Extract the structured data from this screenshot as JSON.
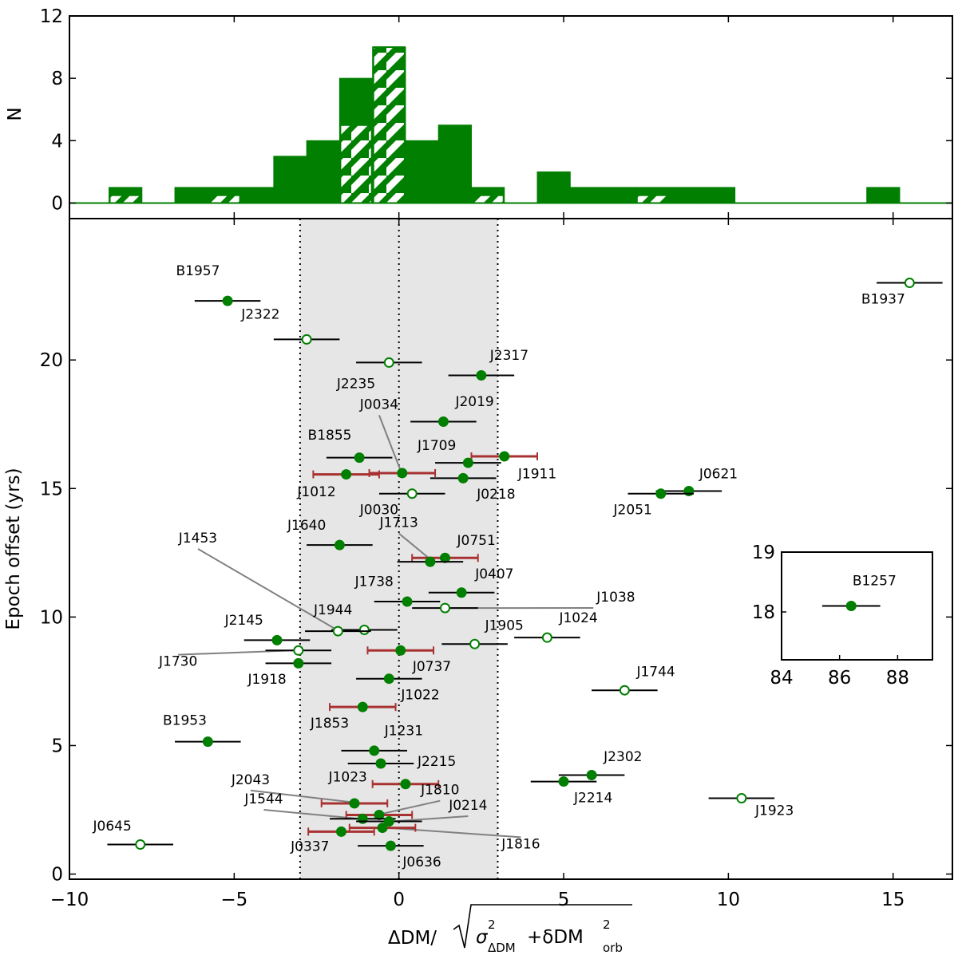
{
  "colors": {
    "green": "#007f00",
    "errorbar_black": "#000000",
    "errorbar_red": "#a83232",
    "band_fill": "#e6e6e6",
    "leader_line": "#808080"
  },
  "chart_data": [
    {
      "type": "histogram",
      "panel": "top",
      "ylabel": "N",
      "ylim": [
        -1,
        12
      ],
      "yticks": [
        0,
        4,
        8,
        12
      ],
      "xlim": [
        -10,
        16.8
      ],
      "bin_width": 1.0,
      "bins": [
        {
          "x0": -8.8,
          "total": 1,
          "hatched": 0.5
        },
        {
          "x0": -6.8,
          "total": 1,
          "hatched": 0
        },
        {
          "x0": -5.8,
          "total": 1,
          "hatched": 0.5
        },
        {
          "x0": -4.8,
          "total": 1,
          "hatched": 0
        },
        {
          "x0": -3.8,
          "total": 3,
          "hatched": 0
        },
        {
          "x0": -2.8,
          "total": 4,
          "hatched": 0
        },
        {
          "x0": -1.8,
          "total": 8,
          "hatched": 5
        },
        {
          "x0": -0.8,
          "total": 10,
          "hatched": 10
        },
        {
          "x0": 0.2,
          "total": 4,
          "hatched": 0
        },
        {
          "x0": 1.2,
          "total": 5,
          "hatched": 0
        },
        {
          "x0": 2.2,
          "total": 1,
          "hatched": 0.5
        },
        {
          "x0": 4.2,
          "total": 2,
          "hatched": 0
        },
        {
          "x0": 5.2,
          "total": 1,
          "hatched": 0
        },
        {
          "x0": 6.2,
          "total": 1,
          "hatched": 0
        },
        {
          "x0": 7.2,
          "total": 1,
          "hatched": 0.5
        },
        {
          "x0": 8.2,
          "total": 1,
          "hatched": 0
        },
        {
          "x0": 9.2,
          "total": 1,
          "hatched": 0
        },
        {
          "x0": 14.2,
          "total": 1,
          "hatched": 0
        }
      ]
    },
    {
      "type": "scatter",
      "panel": "main",
      "ylabel": "Epoch offset (yrs)",
      "xlabel": "ΔDM/√(σ²ΔDM + δDM²orb)",
      "xlim": [
        -10,
        16.8
      ],
      "ylim": [
        -0.2,
        25.5
      ],
      "xticks": [
        -10,
        -5,
        0,
        5,
        10,
        15
      ],
      "yticks": [
        0,
        5,
        10,
        15,
        20
      ],
      "band": [
        -3,
        3
      ],
      "vlines": [
        -3,
        0,
        3
      ],
      "points": [
        {
          "name": "B1957",
          "x": -5.2,
          "y": 22.3,
          "filled": true,
          "err": 1.0,
          "red": false
        },
        {
          "name": "J2322",
          "x": -2.8,
          "y": 20.8,
          "filled": false,
          "err": 1.0,
          "red": false
        },
        {
          "name": "J2235",
          "x": -0.3,
          "y": 19.9,
          "filled": false,
          "err": 1.0,
          "red": false
        },
        {
          "name": "J2317",
          "x": 2.5,
          "y": 19.4,
          "filled": true,
          "err": 1.0,
          "red": false
        },
        {
          "name": "J2019",
          "x": 1.35,
          "y": 17.6,
          "filled": true,
          "err": 1.0,
          "red": false
        },
        {
          "name": "B1855",
          "x": -1.2,
          "y": 16.2,
          "filled": true,
          "err": 1.0,
          "red": false
        },
        {
          "name": "J1911",
          "x": 3.2,
          "y": 16.25,
          "filled": true,
          "err": 1.0,
          "red": true
        },
        {
          "name": "J1709",
          "x": 2.1,
          "y": 16.0,
          "filled": true,
          "err": 1.0,
          "red": false
        },
        {
          "name": "J0034",
          "x": 0.1,
          "y": 15.6,
          "filled": true,
          "err": 1.0,
          "red": true
        },
        {
          "name": "J1012",
          "x": -1.6,
          "y": 15.55,
          "filled": true,
          "err": 1.0,
          "red": true
        },
        {
          "name": "J0218",
          "x": 1.95,
          "y": 15.4,
          "filled": true,
          "err": 1.0,
          "red": false
        },
        {
          "name": "J0030",
          "x": 0.4,
          "y": 14.8,
          "filled": false,
          "err": 1.0,
          "red": false
        },
        {
          "name": "J0621",
          "x": 8.8,
          "y": 14.9,
          "filled": true,
          "err": 1.0,
          "red": false
        },
        {
          "name": "J2051",
          "x": 7.95,
          "y": 14.8,
          "filled": true,
          "err": 1.0,
          "red": false
        },
        {
          "name": "J1640",
          "x": -1.8,
          "y": 12.8,
          "filled": true,
          "err": 1.0,
          "red": false
        },
        {
          "name": "J0751",
          "x": 1.4,
          "y": 12.3,
          "filled": true,
          "err": 1.0,
          "red": true
        },
        {
          "name": "J1713",
          "x": 0.95,
          "y": 12.15,
          "filled": true,
          "err": 1.0,
          "red": false
        },
        {
          "name": "J0407",
          "x": 1.9,
          "y": 10.95,
          "filled": true,
          "err": 1.0,
          "red": false
        },
        {
          "name": "J1738",
          "x": 0.25,
          "y": 10.6,
          "filled": true,
          "err": 1.0,
          "red": false
        },
        {
          "name": "J1038",
          "x": 1.4,
          "y": 10.35,
          "filled": false,
          "err": 1.0,
          "red": false
        },
        {
          "name": "J1944",
          "x": -1.05,
          "y": 9.5,
          "filled": false,
          "err": 1.0,
          "red": false
        },
        {
          "name": "J1453",
          "x": -1.85,
          "y": 9.45,
          "filled": false,
          "err": 1.0,
          "red": false
        },
        {
          "name": "J2145",
          "x": -3.7,
          "y": 9.1,
          "filled": true,
          "err": 1.0,
          "red": false
        },
        {
          "name": "J1905",
          "x": 2.3,
          "y": 8.95,
          "filled": false,
          "err": 1.0,
          "red": false
        },
        {
          "name": "J1024",
          "x": 4.5,
          "y": 9.2,
          "filled": false,
          "err": 1.0,
          "red": false
        },
        {
          "name": "J1730",
          "x": -3.05,
          "y": 8.7,
          "filled": false,
          "err": 1.0,
          "red": false
        },
        {
          "name": "J0737",
          "x": 0.05,
          "y": 8.7,
          "filled": true,
          "err": 1.0,
          "red": true
        },
        {
          "name": "J1918",
          "x": -3.05,
          "y": 8.2,
          "filled": true,
          "err": 1.0,
          "red": false
        },
        {
          "name": "J1022",
          "x": -0.3,
          "y": 7.6,
          "filled": true,
          "err": 1.0,
          "red": false
        },
        {
          "name": "J1744",
          "x": 6.85,
          "y": 7.15,
          "filled": false,
          "err": 1.0,
          "red": false
        },
        {
          "name": "J1853",
          "x": -1.1,
          "y": 6.5,
          "filled": true,
          "err": 1.0,
          "red": true
        },
        {
          "name": "B1953",
          "x": -5.8,
          "y": 5.15,
          "filled": true,
          "err": 1.0,
          "red": false
        },
        {
          "name": "J1231",
          "x": -0.75,
          "y": 4.8,
          "filled": true,
          "err": 1.0,
          "red": false
        },
        {
          "name": "J2215",
          "x": -0.55,
          "y": 4.3,
          "filled": true,
          "err": 1.0,
          "red": false
        },
        {
          "name": "J2302",
          "x": 5.85,
          "y": 3.85,
          "filled": true,
          "err": 1.0,
          "red": false
        },
        {
          "name": "J2214",
          "x": 5.0,
          "y": 3.6,
          "filled": true,
          "err": 1.0,
          "red": false
        },
        {
          "name": "J1023",
          "x": 0.2,
          "y": 3.5,
          "filled": true,
          "err": 1.0,
          "red": true
        },
        {
          "name": "J1923",
          "x": 10.4,
          "y": 2.95,
          "filled": false,
          "err": 1.0,
          "red": false
        },
        {
          "name": "J2043",
          "x": -1.35,
          "y": 2.75,
          "filled": true,
          "err": 1.0,
          "red": true
        },
        {
          "name": "J1810",
          "x": -0.6,
          "y": 2.3,
          "filled": true,
          "err": 1.0,
          "red": true
        },
        {
          "name": "J1544",
          "x": -1.1,
          "y": 2.15,
          "filled": true,
          "err": 1.0,
          "red": false
        },
        {
          "name": "J0214",
          "x": -0.3,
          "y": 2.05,
          "filled": true,
          "err": 1.0,
          "red": false
        },
        {
          "name": "J1816",
          "x": -0.5,
          "y": 1.8,
          "filled": true,
          "err": 1.0,
          "red": true
        },
        {
          "name": "J0337",
          "x": -1.75,
          "y": 1.65,
          "filled": true,
          "err": 1.0,
          "red": true
        },
        {
          "name": "J0636",
          "x": -0.25,
          "y": 1.1,
          "filled": true,
          "err": 1.0,
          "red": false
        },
        {
          "name": "J0645",
          "x": -7.85,
          "y": 1.15,
          "filled": false,
          "err": 1.0,
          "red": false
        },
        {
          "name": "B1937",
          "x": 15.5,
          "y": 23.0,
          "filled": false,
          "err": 1.0,
          "red": false
        }
      ],
      "annotations": [
        {
          "name": "J0034",
          "lx": -0.6,
          "ly": 18.1,
          "anchor": "middle",
          "leader": true,
          "tx": 0.05,
          "ty": 15.7
        },
        {
          "name": "J1713",
          "lx": 0.0,
          "ly": 13.5,
          "anchor": "middle",
          "leader": true,
          "tx": 0.9,
          "ty": 12.3
        },
        {
          "name": "J1453",
          "lx": -6.1,
          "ly": 12.9,
          "anchor": "middle",
          "leader": true,
          "tx": -1.95,
          "ty": 9.55
        },
        {
          "name": "J1038",
          "lx": 6.0,
          "ly": 10.6,
          "anchor": "start",
          "leader": true,
          "tx": 1.5,
          "ty": 10.35
        },
        {
          "name": "J1730",
          "lx": -6.7,
          "ly": 8.1,
          "anchor": "middle",
          "leader": true,
          "tx": -3.2,
          "ty": 8.7
        },
        {
          "name": "J2043",
          "lx": -4.5,
          "ly": 3.5,
          "anchor": "middle",
          "leader": true,
          "tx": -1.45,
          "ty": 2.8
        },
        {
          "name": "J1544",
          "lx": -4.1,
          "ly": 2.75,
          "anchor": "middle",
          "leader": true,
          "tx": -1.2,
          "ty": 2.15
        },
        {
          "name": "J1810",
          "lx": 1.25,
          "ly": 3.1,
          "anchor": "middle",
          "leader": true,
          "tx": -0.5,
          "ty": 2.35
        },
        {
          "name": "J0214",
          "lx": 2.1,
          "ly": 2.5,
          "anchor": "middle",
          "leader": true,
          "tx": -0.2,
          "ty": 2.05
        },
        {
          "name": "J1816",
          "lx": 3.7,
          "ly": 1.0,
          "anchor": "middle",
          "leader": true,
          "tx": -0.4,
          "ty": 1.8
        }
      ],
      "labels": [
        {
          "name": "B1957",
          "lx": -6.1,
          "ly": 23.3
        },
        {
          "name": "J2322",
          "lx": -4.2,
          "ly": 21.6
        },
        {
          "name": "J2235",
          "lx": -1.3,
          "ly": 18.9
        },
        {
          "name": "J2317",
          "lx": 3.35,
          "ly": 20.0
        },
        {
          "name": "J2019",
          "lx": 2.3,
          "ly": 18.2
        },
        {
          "name": "B1855",
          "lx": -2.1,
          "ly": 16.9
        },
        {
          "name": "J1709",
          "lx": 1.15,
          "ly": 16.5
        },
        {
          "name": "J1911",
          "lx": 4.2,
          "ly": 15.4
        },
        {
          "name": "J1012",
          "lx": -2.5,
          "ly": 14.7
        },
        {
          "name": "J0218",
          "lx": 2.95,
          "ly": 14.6
        },
        {
          "name": "J0030",
          "lx": -0.6,
          "ly": 14.0
        },
        {
          "name": "J0621",
          "lx": 9.7,
          "ly": 15.4
        },
        {
          "name": "J2051",
          "lx": 7.1,
          "ly": 14.0
        },
        {
          "name": "J1640",
          "lx": -2.8,
          "ly": 13.4
        },
        {
          "name": "J0751",
          "lx": 2.35,
          "ly": 12.8
        },
        {
          "name": "J0407",
          "lx": 2.9,
          "ly": 11.5
        },
        {
          "name": "J1738",
          "lx": -0.75,
          "ly": 11.2
        },
        {
          "name": "J1944",
          "lx": -2.0,
          "ly": 10.1
        },
        {
          "name": "J2145",
          "lx": -4.7,
          "ly": 9.7
        },
        {
          "name": "J1905",
          "lx": 3.2,
          "ly": 9.5
        },
        {
          "name": "J1024",
          "lx": 5.45,
          "ly": 9.8
        },
        {
          "name": "J0737",
          "lx": 1.0,
          "ly": 7.9
        },
        {
          "name": "J1918",
          "lx": -4.0,
          "ly": 7.4
        },
        {
          "name": "J1022",
          "lx": 0.65,
          "ly": 6.8
        },
        {
          "name": "J1744",
          "lx": 7.8,
          "ly": 7.7
        },
        {
          "name": "J1853",
          "lx": -2.1,
          "ly": 5.7
        },
        {
          "name": "B1953",
          "lx": -6.5,
          "ly": 5.8
        },
        {
          "name": "J1231",
          "lx": 0.15,
          "ly": 5.4
        },
        {
          "name": "J2215",
          "lx": 1.15,
          "ly": 4.2
        },
        {
          "name": "J2302",
          "lx": 6.8,
          "ly": 4.4
        },
        {
          "name": "J2214",
          "lx": 5.9,
          "ly": 2.8
        },
        {
          "name": "J1023",
          "lx": -1.55,
          "ly": 3.6
        },
        {
          "name": "J1923",
          "lx": 11.4,
          "ly": 2.3
        },
        {
          "name": "J0337",
          "lx": -2.7,
          "ly": 0.9
        },
        {
          "name": "J0636",
          "lx": 0.7,
          "ly": 0.3
        },
        {
          "name": "J0645",
          "lx": -8.7,
          "ly": 1.7
        },
        {
          "name": "B1937",
          "lx": 14.7,
          "ly": 22.2
        }
      ]
    },
    {
      "type": "scatter",
      "panel": "inset",
      "xlim": [
        84,
        89.2
      ],
      "ylim": [
        17.2,
        19
      ],
      "xticks": [
        84,
        86,
        88
      ],
      "yticks": [
        18,
        19
      ],
      "points": [
        {
          "name": "B1257",
          "x": 86.4,
          "y": 18.1,
          "filled": true,
          "err": 1.0,
          "red": false
        }
      ],
      "label": {
        "name": "B1257",
        "lx": 87.2,
        "ly": 18.45
      }
    }
  ],
  "axis_text": {
    "hist_ylabel": "N",
    "main_ylabel": "Epoch offset (yrs)",
    "xlabel_prefix": "ΔDM/",
    "xlabel_sigma": "σ",
    "xlabel_sub1": "ΔDM",
    "xlabel_plus": "+δDM",
    "xlabel_sub2": "orb",
    "xlabel_sup": "2"
  }
}
